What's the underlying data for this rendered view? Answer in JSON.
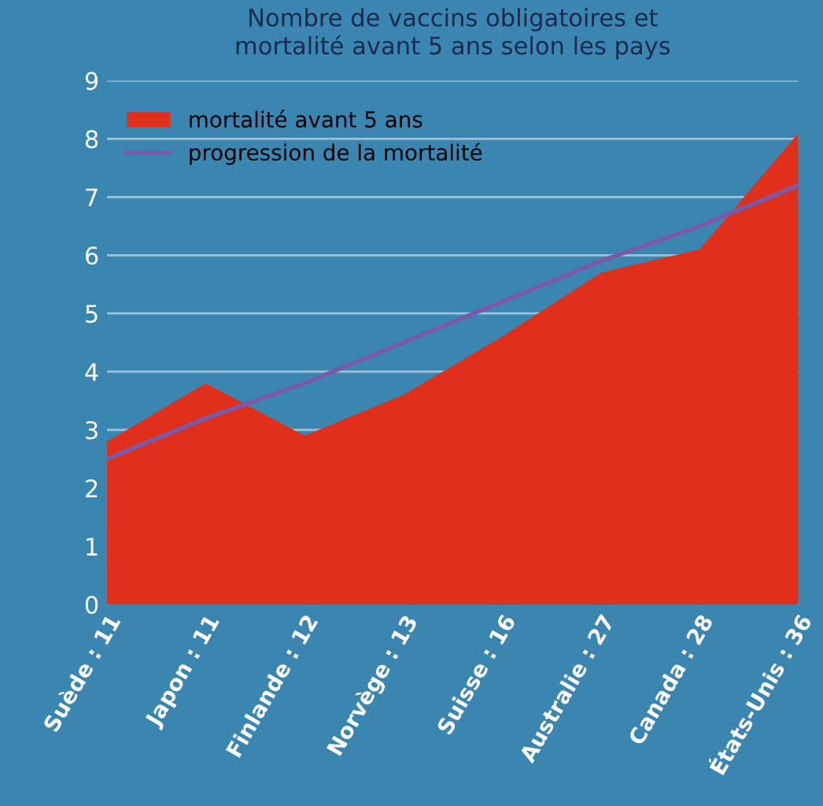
{
  "chart_data": {
    "type": "area",
    "title": "Nombre de vaccins obligatoires et\nmortalité avant 5 ans selon les pays",
    "categories": [
      "Suède : 11",
      "Japon : 11",
      "Finlande : 12",
      "Norvège : 13",
      "Suisse : 16",
      "Australie : 27",
      "Canada : 28",
      "États-Unis : 36"
    ],
    "ylim": [
      0,
      9
    ],
    "yticks": [
      0,
      1,
      2,
      3,
      4,
      5,
      6,
      7,
      8,
      9
    ],
    "grid": "y",
    "legend": "top left",
    "series": [
      {
        "name": "mortalité avant 5 ans",
        "color": "#e0301c",
        "values": [
          2.8,
          3.8,
          2.9,
          3.6,
          4.6,
          5.7,
          6.1,
          8.1
        ]
      },
      {
        "name": "progression de la mortalité",
        "type": "line",
        "color": "#7a5aa8",
        "values": [
          2.5,
          3.2,
          3.8,
          4.5,
          5.2,
          5.9,
          6.5,
          7.2
        ]
      }
    ]
  }
}
